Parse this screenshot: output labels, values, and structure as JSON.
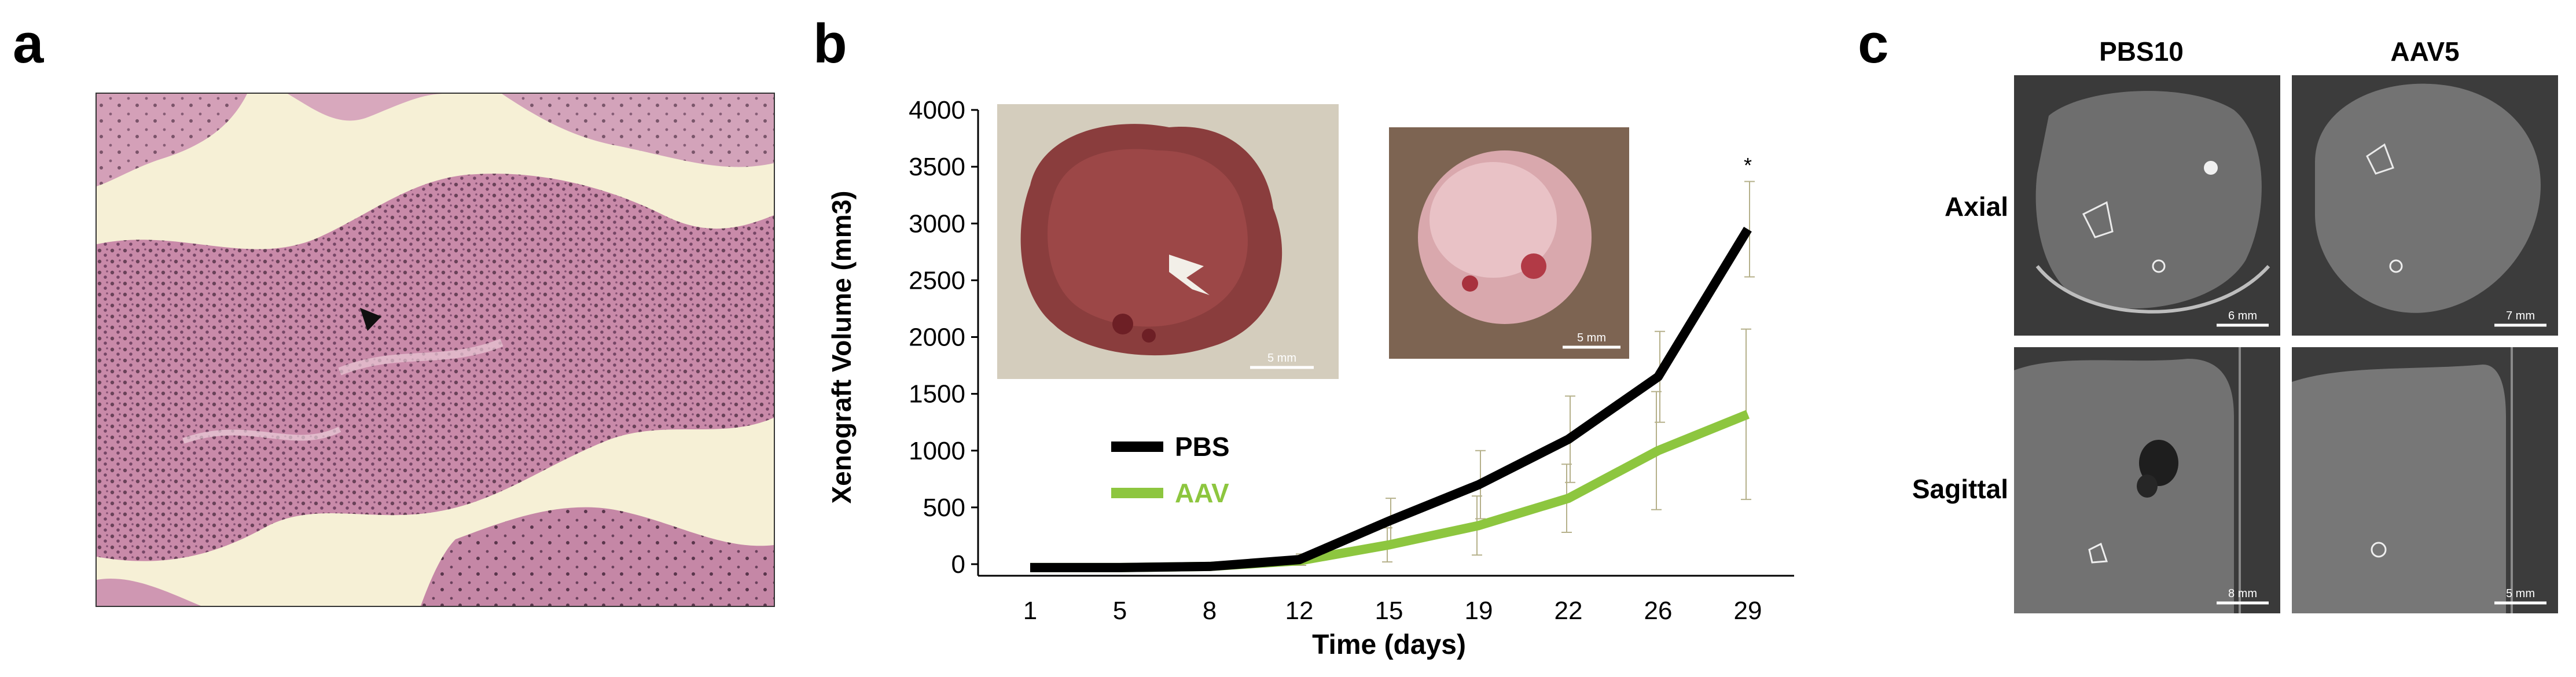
{
  "panels": {
    "a": {
      "letter": "a"
    },
    "b": {
      "letter": "b"
    },
    "c": {
      "letter": "c",
      "columns": [
        "PBS10",
        "AAV5"
      ],
      "rows": [
        "Axial",
        "Sagittal"
      ],
      "scale_labels": {
        "axial_pbs": "6 mm",
        "axial_aav": "7 mm",
        "sagittal_pbs": "8 mm",
        "sagittal_aav": "5 mm"
      }
    }
  },
  "photos": {
    "pbs_scale": "5 mm",
    "aav_scale": "5 mm"
  },
  "colors": {
    "pbs": "#000000",
    "aav": "#8dc63f",
    "he_background": "#f7f1d8",
    "he_tissue": "#c98aa9"
  },
  "chart_data": {
    "type": "line",
    "title": "",
    "xlabel": "Time (days)",
    "ylabel": "Xenograft Volume (mm3)",
    "categories": [
      "1",
      "5",
      "8",
      "12",
      "15",
      "19",
      "22",
      "26",
      "29"
    ],
    "ylim": [
      0,
      4000
    ],
    "yticks": [
      0,
      500,
      1000,
      1500,
      2000,
      2500,
      3000,
      3500,
      4000
    ],
    "series": [
      {
        "name": "PBS",
        "values": [
          -30,
          -30,
          -20,
          40,
          380,
          700,
          1100,
          1650,
          2950
        ],
        "error": [
          0,
          0,
          0,
          50,
          200,
          300,
          380,
          400,
          420
        ]
      },
      {
        "name": "AAV",
        "values": [
          -30,
          -30,
          -20,
          30,
          170,
          340,
          580,
          1000,
          1320
        ],
        "error": [
          0,
          0,
          0,
          40,
          150,
          260,
          300,
          520,
          750
        ]
      }
    ],
    "annotations": [
      {
        "text": "*",
        "category": "29",
        "y": 3500
      }
    ],
    "legend_position": "lower-left"
  }
}
